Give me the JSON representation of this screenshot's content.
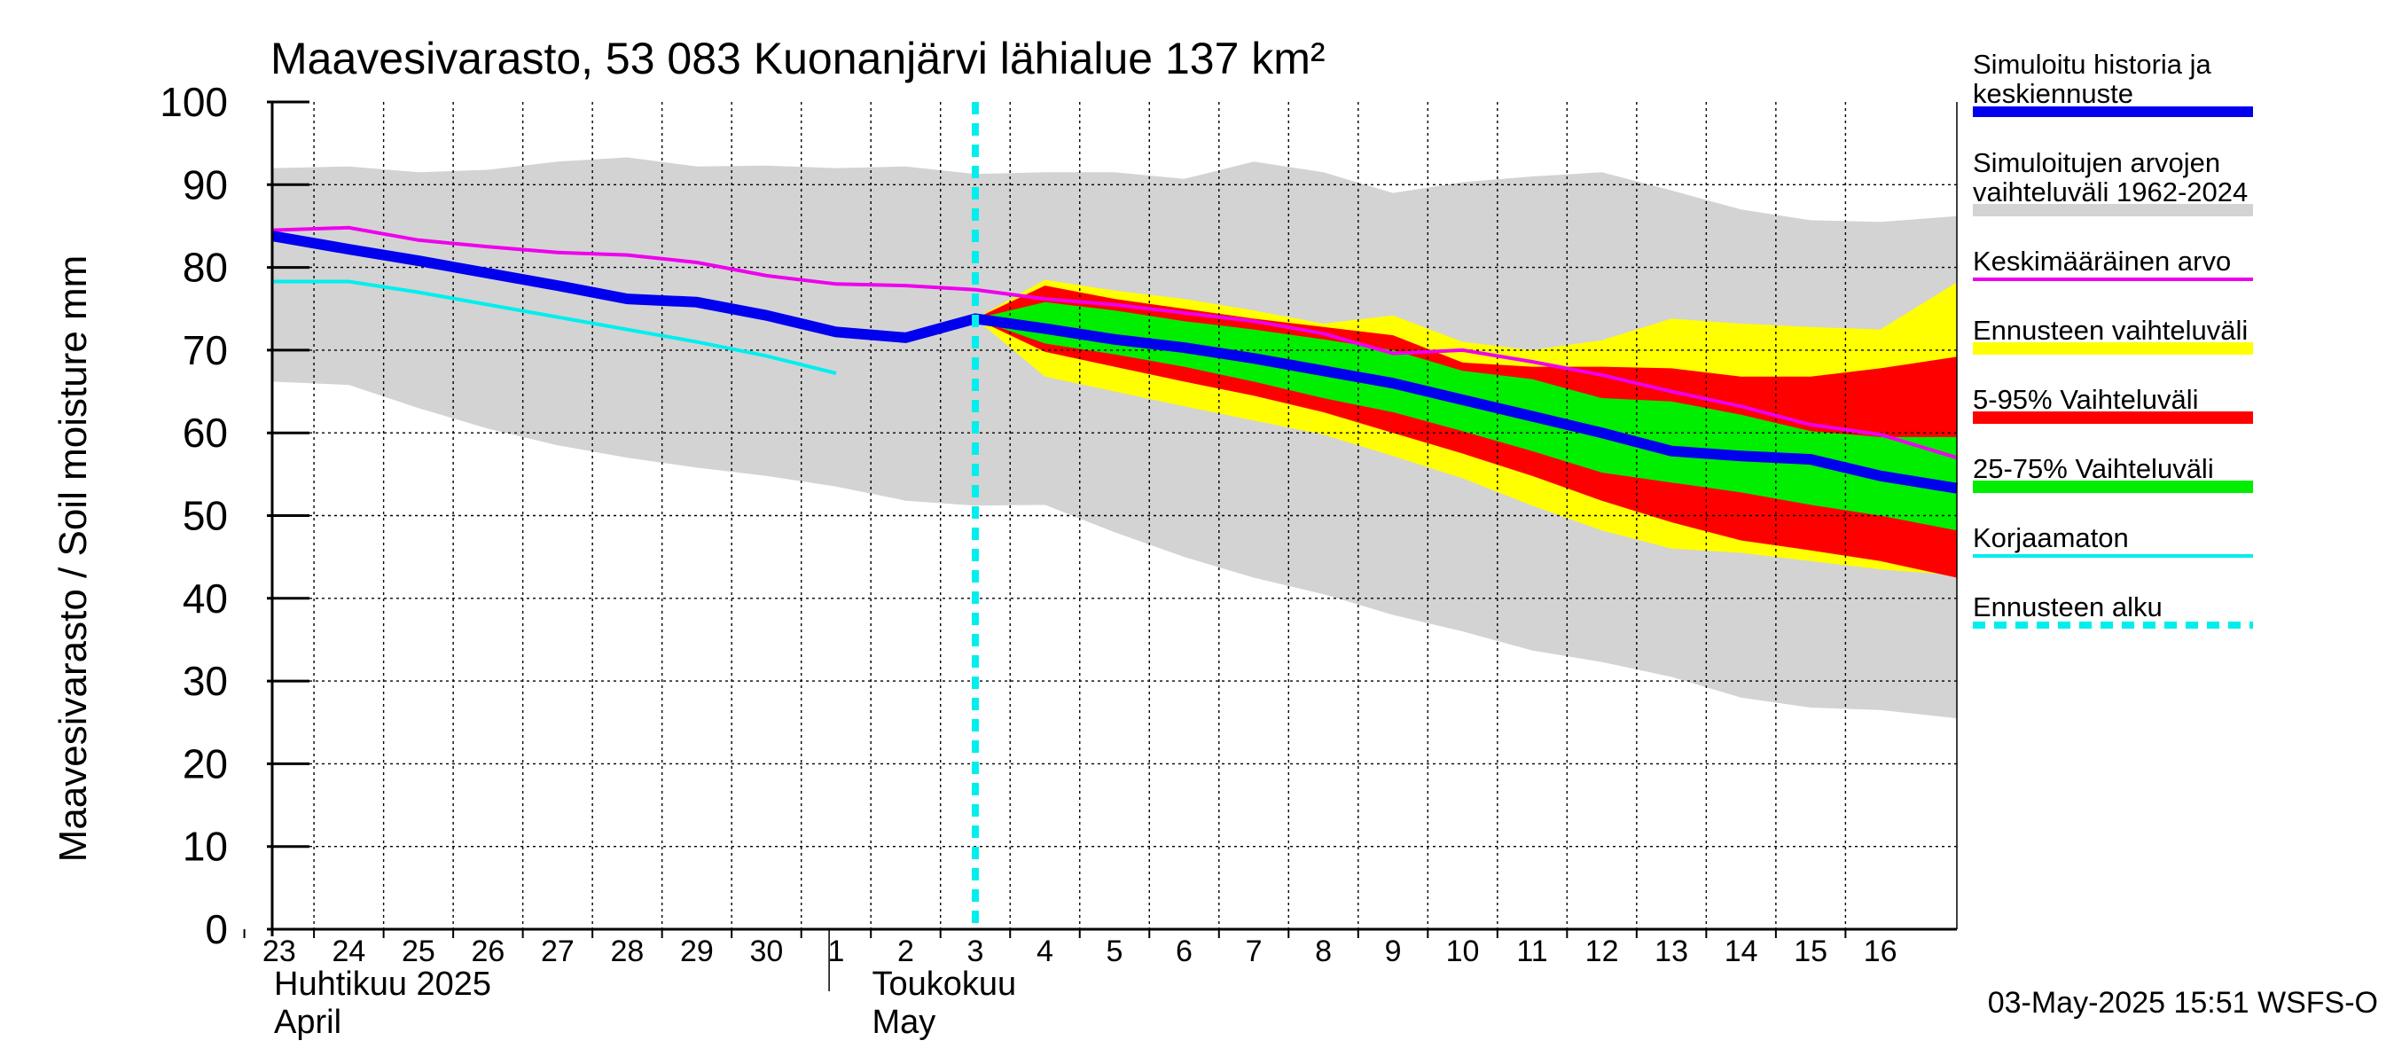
{
  "chart_data": {
    "type": "area",
    "title": "Maavesivarasto, 53 083 Kuonanjärvi lähialue 137 km²",
    "ylabel": "Maavesivarasto / Soil moisture   mm",
    "ylim": [
      0,
      100
    ],
    "yticks": [
      0,
      10,
      20,
      30,
      40,
      50,
      60,
      70,
      80,
      90,
      100
    ],
    "xlim": [
      -0.1,
      24.1
    ],
    "x_day_labels": [
      "23",
      "24",
      "25",
      "26",
      "27",
      "28",
      "29",
      "30",
      "1",
      "2",
      "3",
      "4",
      "5",
      "6",
      "7",
      "8",
      "9",
      "10",
      "11",
      "12",
      "13",
      "14",
      "15",
      "16"
    ],
    "month_labels": [
      {
        "line1": "Huhtikuu  2025",
        "line2": "April",
        "x": 0
      },
      {
        "line1": "Toukokuu",
        "line2": "May",
        "x": 9
      }
    ],
    "month_boundary_x": 7.9,
    "forecast_start_x": 10,
    "timestamp": "03-May-2025 15:51 WSFS-O",
    "colors": {
      "range_hist": "#d3d3d3",
      "range_forecast": "#ffff00",
      "range_5_95": "#ff0000",
      "range_25_75": "#00ee00",
      "simulated": "#0000ee",
      "mean": "#ee00ee",
      "uncorrected": "#00eeee",
      "forecast_start": "#00eeee",
      "grid": "#000000"
    },
    "series": {
      "hist_range": {
        "x": [
          -0.1,
          1,
          2,
          3,
          4,
          5,
          6,
          7,
          8,
          9,
          10,
          11,
          12,
          13,
          14,
          15,
          16,
          17,
          18,
          19,
          20,
          21,
          22,
          23,
          24.1
        ],
        "upper": [
          92,
          92.2,
          91.5,
          91.8,
          92.8,
          93.3,
          92.2,
          92.3,
          92,
          92.2,
          91.3,
          91.5,
          91.5,
          90.7,
          92.8,
          91.5,
          89,
          90.3,
          91,
          91.5,
          89.3,
          87,
          85.7,
          85.5,
          86.2
        ],
        "lower": [
          66.2,
          65.8,
          63,
          60.5,
          58.5,
          57,
          55.8,
          54.8,
          53.5,
          51.8,
          51.2,
          51.3,
          48,
          45,
          42.5,
          40.5,
          38,
          36,
          33.7,
          32.3,
          30.5,
          28,
          26.8,
          26.5,
          25.5
        ]
      },
      "forecast_range": {
        "x": [
          10,
          11,
          12,
          13,
          14,
          15,
          16,
          17,
          18,
          19,
          20,
          21,
          22,
          23,
          24.1
        ],
        "upper": [
          73.8,
          78.5,
          77.2,
          76.2,
          74.8,
          73.2,
          74.2,
          71,
          70,
          71.2,
          73.8,
          73.2,
          72.8,
          72.5,
          78.2
        ],
        "lower": [
          73.8,
          66.8,
          65,
          63.2,
          61.5,
          59.8,
          57.2,
          54.5,
          51.2,
          48.2,
          46,
          45.5,
          44.5,
          43.5,
          42.8
        ]
      },
      "p5_95": {
        "x": [
          10,
          11,
          12,
          13,
          14,
          15,
          16,
          17,
          18,
          19,
          20,
          21,
          22,
          23,
          24.1
        ],
        "upper": [
          73.8,
          77.8,
          76.2,
          75,
          73.8,
          72.8,
          71.8,
          68.5,
          68,
          68,
          67.8,
          66.8,
          66.8,
          67.8,
          69.2
        ],
        "lower": [
          73.8,
          69.8,
          68,
          66.2,
          64.5,
          62.5,
          60,
          57.5,
          54.8,
          51.8,
          49.2,
          47,
          45.8,
          44.5,
          42.5
        ]
      },
      "p25_75": {
        "x": [
          10,
          11,
          12,
          13,
          14,
          15,
          16,
          17,
          18,
          19,
          20,
          21,
          22,
          23,
          24.1
        ],
        "upper": [
          73.8,
          75.8,
          74.8,
          73.5,
          72.5,
          71.3,
          70,
          67.5,
          66.5,
          64.2,
          63.8,
          62.2,
          60.2,
          59.5,
          59.5
        ],
        "lower": [
          73.8,
          70.8,
          69.5,
          68,
          66.2,
          64.2,
          62.5,
          60.2,
          57.8,
          55.2,
          54,
          52.8,
          51.3,
          50,
          48.2
        ]
      },
      "uncorrected": {
        "x": [
          -0.1,
          1,
          2,
          3,
          4,
          5,
          6,
          7,
          8
        ],
        "values": [
          78.3,
          78.3,
          77,
          75.5,
          74,
          72.5,
          71,
          69.3,
          67.2
        ]
      },
      "mean": {
        "x": [
          -0.1,
          1,
          2,
          3,
          4,
          5,
          6,
          7,
          8,
          9,
          10,
          11,
          12,
          13,
          14,
          15,
          16,
          17,
          18,
          19,
          20,
          21,
          22,
          23,
          24.1
        ],
        "values": [
          84.5,
          84.8,
          83.3,
          82.5,
          81.8,
          81.5,
          80.6,
          79,
          78,
          77.8,
          77.3,
          76.2,
          75.5,
          74.5,
          73.5,
          72,
          69.6,
          70,
          68.6,
          67,
          65,
          63.2,
          61,
          59.8,
          57
        ]
      },
      "simulated": {
        "x": [
          -0.1,
          1,
          2,
          3,
          4,
          5,
          6,
          7,
          8,
          9,
          10,
          11,
          12,
          13,
          14,
          15,
          16,
          17,
          18,
          19,
          20,
          21,
          22,
          23,
          24.1
        ],
        "values": [
          83.8,
          82.2,
          80.8,
          79.3,
          77.8,
          76.2,
          75.8,
          74.2,
          72.2,
          71.5,
          73.8,
          72.6,
          71.3,
          70.3,
          69,
          67.5,
          66,
          64,
          62,
          60,
          57.8,
          57.2,
          56.8,
          54.8,
          53.3
        ]
      }
    },
    "legend": [
      {
        "key": "simulated",
        "label_lines": [
          "Simuloitu historia ja",
          "keskiennuste"
        ],
        "style": "thick",
        "color_key": "simulated"
      },
      {
        "key": "hist_range",
        "label_lines": [
          "Simuloitujen arvojen",
          "vaihteluväli 1962-2024"
        ],
        "style": "band",
        "color_key": "range_hist"
      },
      {
        "key": "mean",
        "label_lines": [
          "Keskimääräinen arvo"
        ],
        "style": "thin",
        "color_key": "mean"
      },
      {
        "key": "forecast_range",
        "label_lines": [
          "Ennusteen vaihteluväli"
        ],
        "style": "band",
        "color_key": "range_forecast"
      },
      {
        "key": "p5_95",
        "label_lines": [
          "5-95% Vaihteluväli"
        ],
        "style": "band",
        "color_key": "range_5_95"
      },
      {
        "key": "p25_75",
        "label_lines": [
          "25-75% Vaihteluväli"
        ],
        "style": "band",
        "color_key": "range_25_75"
      },
      {
        "key": "uncorrected",
        "label_lines": [
          "Korjaamaton"
        ],
        "style": "thin",
        "color_key": "uncorrected"
      },
      {
        "key": "forecast_start",
        "label_lines": [
          "Ennusteen alku"
        ],
        "style": "dashed",
        "color_key": "forecast_start"
      }
    ]
  }
}
